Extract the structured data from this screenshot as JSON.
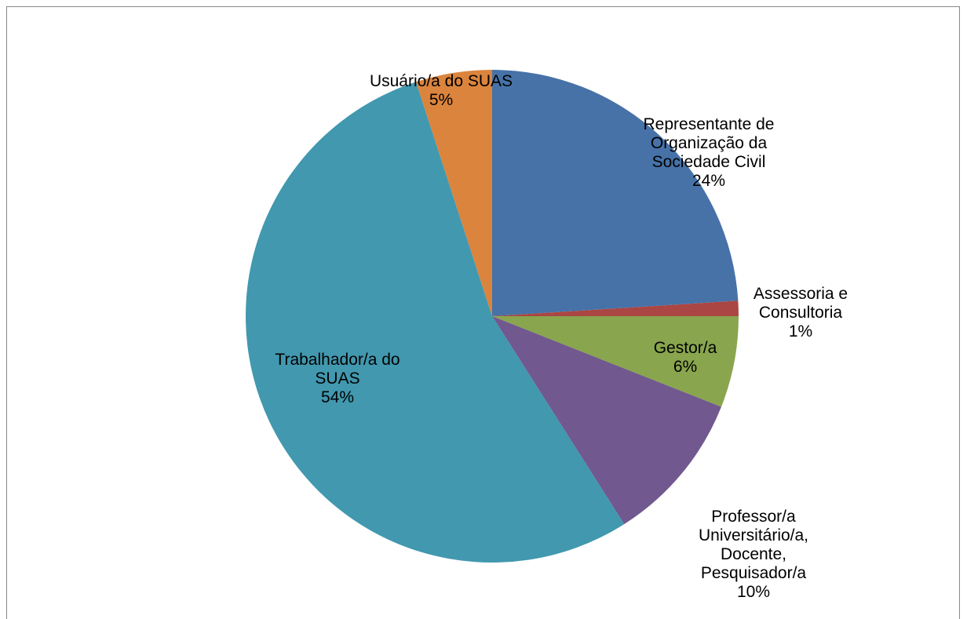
{
  "chart_data": {
    "type": "pie",
    "categories": [
      "Representante de Organização da Sociedade Civil",
      "Assessoria e Consultoria",
      "Gestor/a",
      "Professor/a Universitário/a, Docente, Pesquisador/a",
      "Trabalhador/a do SUAS",
      "Usuário/a do SUAS"
    ],
    "values": [
      24,
      1,
      6,
      10,
      54,
      5
    ],
    "value_labels": [
      "24%",
      "1%",
      "6%",
      "10%",
      "54%",
      "5%"
    ],
    "colors": [
      "#4672a8",
      "#aa4643",
      "#89a54e",
      "#71588f",
      "#4198af",
      "#db843d"
    ]
  }
}
